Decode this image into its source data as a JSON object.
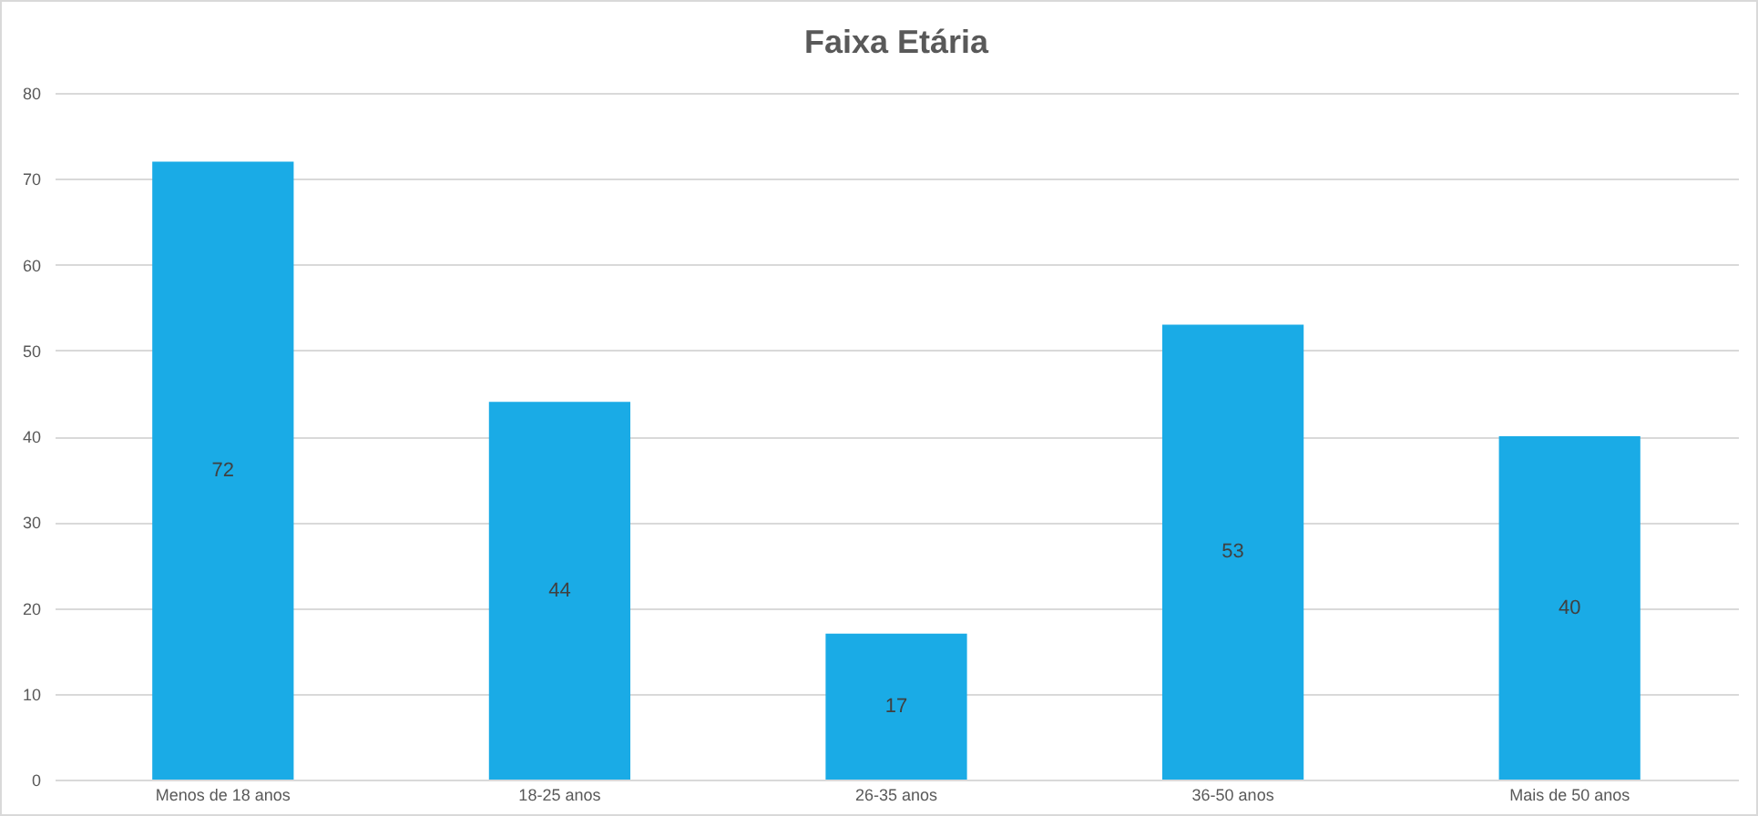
{
  "chart_data": {
    "type": "bar",
    "title": "Faixa Etária",
    "categories": [
      "Menos de 18 anos",
      "18-25 anos",
      "26-35 anos",
      "36-50 anos",
      "Mais de 50 anos"
    ],
    "values": [
      72,
      44,
      17,
      53,
      40
    ],
    "color": "#1aabe6",
    "ylim": [
      0,
      80
    ],
    "yticks": [
      0,
      10,
      20,
      30,
      40,
      50,
      60,
      70,
      80
    ],
    "grid": "y",
    "data_labels": true
  }
}
